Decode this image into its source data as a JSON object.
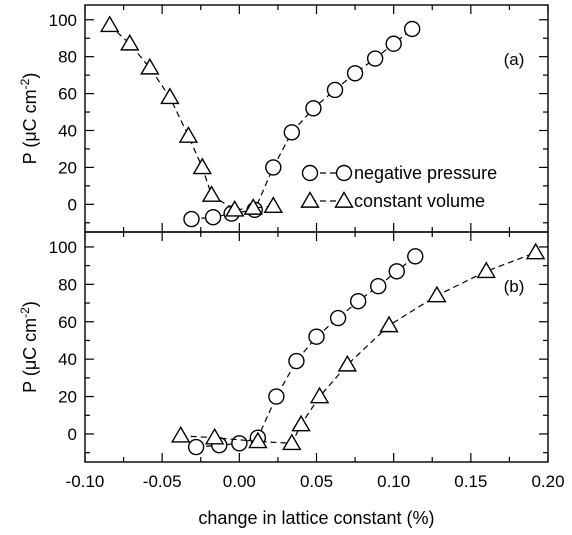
{
  "chart_data": [
    {
      "id": "a",
      "type": "line",
      "panel_label": "(a)",
      "ylabel": "P (μC cm⁻²)",
      "ylabel_base": "P (μC cm",
      "ylabel_sup": "-2",
      "ylabel_close": ")",
      "xlim": [
        -0.1,
        0.2
      ],
      "ylim": [
        -15,
        108
      ],
      "yticks": [
        "0",
        "20",
        "40",
        "60",
        "80",
        "100"
      ],
      "ytick_values": [
        0,
        20,
        40,
        60,
        80,
        100
      ],
      "legend": {
        "placement": "right-middle",
        "entries": [
          "negative pressure",
          "constant volume"
        ]
      },
      "series": [
        {
          "name": "negative pressure",
          "marker": "circle",
          "line": "dashed",
          "x": [
            -0.031,
            -0.017,
            -0.005,
            0.01,
            0.022,
            0.034,
            0.048,
            0.062,
            0.075,
            0.088,
            0.1,
            0.112
          ],
          "y": [
            -8,
            -7,
            -5,
            -3,
            20,
            39,
            52,
            62,
            71,
            79,
            87,
            95
          ]
        },
        {
          "name": "constant volume",
          "marker": "triangle",
          "line": "dashed",
          "x": [
            -0.084,
            -0.071,
            -0.058,
            -0.045,
            -0.033,
            -0.024,
            -0.018,
            -0.003,
            0.009,
            0.022
          ],
          "y": [
            97,
            87,
            74,
            58,
            37,
            20,
            5,
            -3,
            -2,
            -1
          ]
        }
      ]
    },
    {
      "id": "b",
      "type": "line",
      "panel_label": "(b)",
      "ylabel": "P (μC cm⁻²)",
      "ylabel_base": "P (μC cm",
      "ylabel_sup": "-2",
      "ylabel_close": ")",
      "xlabel": "change in lattice constant (%)",
      "xlim": [
        -0.1,
        0.2
      ],
      "ylim": [
        -15,
        108
      ],
      "xticks": [
        "-0.10",
        "-0.05",
        "0.00",
        "0.05",
        "0.10",
        "0.15",
        "0.20"
      ],
      "xtick_values": [
        -0.1,
        -0.05,
        0.0,
        0.05,
        0.1,
        0.15,
        0.2
      ],
      "yticks": [
        "0",
        "20",
        "40",
        "60",
        "80",
        "100"
      ],
      "ytick_values": [
        0,
        20,
        40,
        60,
        80,
        100
      ],
      "series": [
        {
          "name": "negative pressure",
          "marker": "circle",
          "line": "dashed",
          "x": [
            -0.028,
            -0.013,
            0.0,
            0.012,
            0.024,
            0.037,
            0.05,
            0.064,
            0.077,
            0.09,
            0.102,
            0.114
          ],
          "y": [
            -7,
            -6,
            -5,
            -2,
            20,
            39,
            52,
            62,
            71,
            79,
            87,
            95
          ]
        },
        {
          "name": "constant volume",
          "marker": "triangle",
          "line": "dashed",
          "x": [
            -0.038,
            -0.016,
            0.012,
            0.034,
            0.04,
            0.052,
            0.07,
            0.097,
            0.128,
            0.16,
            0.192
          ],
          "y": [
            -1,
            -2,
            -4,
            -5,
            5,
            20,
            37,
            58,
            74,
            87,
            97
          ]
        }
      ]
    }
  ]
}
